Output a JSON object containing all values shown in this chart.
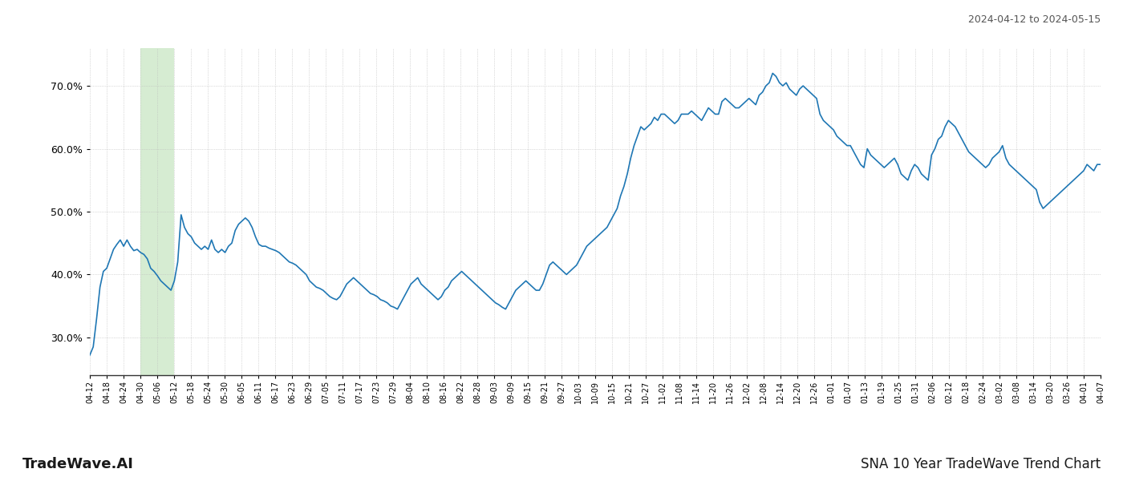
{
  "title_top_right": "2024-04-12 to 2024-05-15",
  "title_bottom_right": "SNA 10 Year TradeWave Trend Chart",
  "title_bottom_left": "TradeWave.AI",
  "line_color": "#1f77b4",
  "line_width": 1.2,
  "background_color": "#ffffff",
  "grid_color": "#bbbbbb",
  "highlight_color": "#d6ecd2",
  "ylim": [
    24.0,
    76.0
  ],
  "yticks": [
    30.0,
    40.0,
    50.0,
    60.0,
    70.0
  ],
  "highlight_start_label": "04-30",
  "highlight_end_label": "05-12",
  "x_tick_labels": [
    "04-12",
    "04-18",
    "04-24",
    "04-30",
    "05-06",
    "05-12",
    "05-18",
    "05-24",
    "05-30",
    "06-05",
    "06-11",
    "06-17",
    "06-23",
    "06-29",
    "07-05",
    "07-11",
    "07-17",
    "07-23",
    "07-29",
    "08-04",
    "08-10",
    "08-16",
    "08-22",
    "08-28",
    "09-03",
    "09-09",
    "09-15",
    "09-21",
    "09-27",
    "10-03",
    "10-09",
    "10-15",
    "10-21",
    "10-27",
    "11-02",
    "11-08",
    "11-14",
    "11-20",
    "11-26",
    "12-02",
    "12-08",
    "12-14",
    "12-20",
    "12-26",
    "01-01",
    "01-07",
    "01-13",
    "01-19",
    "01-25",
    "01-31",
    "02-06",
    "02-12",
    "02-18",
    "02-24",
    "03-02",
    "03-08",
    "03-14",
    "03-20",
    "03-26",
    "04-01",
    "04-07"
  ],
  "y_values": [
    27.2,
    28.5,
    33.0,
    38.0,
    40.5,
    41.0,
    42.5,
    44.0,
    44.8,
    45.5,
    44.5,
    45.5,
    44.5,
    43.8,
    44.0,
    43.5,
    43.2,
    42.5,
    41.0,
    40.5,
    39.8,
    39.0,
    38.5,
    38.0,
    37.5,
    39.0,
    42.0,
    49.5,
    47.5,
    46.5,
    46.0,
    45.0,
    44.5,
    44.0,
    44.5,
    44.0,
    45.5,
    44.0,
    43.5,
    44.0,
    43.5,
    44.5,
    45.0,
    47.0,
    48.0,
    48.5,
    49.0,
    48.5,
    47.5,
    46.0,
    44.8,
    44.5,
    44.5,
    44.2,
    44.0,
    43.8,
    43.5,
    43.0,
    42.5,
    42.0,
    41.8,
    41.5,
    41.0,
    40.5,
    40.0,
    39.0,
    38.5,
    38.0,
    37.8,
    37.5,
    37.0,
    36.5,
    36.2,
    36.0,
    36.5,
    37.5,
    38.5,
    39.0,
    39.5,
    39.0,
    38.5,
    38.0,
    37.5,
    37.0,
    36.8,
    36.5,
    36.0,
    35.8,
    35.5,
    35.0,
    34.8,
    34.5,
    35.5,
    36.5,
    37.5,
    38.5,
    39.0,
    39.5,
    38.5,
    38.0,
    37.5,
    37.0,
    36.5,
    36.0,
    36.5,
    37.5,
    38.0,
    39.0,
    39.5,
    40.0,
    40.5,
    40.0,
    39.5,
    39.0,
    38.5,
    38.0,
    37.5,
    37.0,
    36.5,
    36.0,
    35.5,
    35.2,
    34.8,
    34.5,
    35.5,
    36.5,
    37.5,
    38.0,
    38.5,
    39.0,
    38.5,
    38.0,
    37.5,
    37.5,
    38.5,
    40.0,
    41.5,
    42.0,
    41.5,
    41.0,
    40.5,
    40.0,
    40.5,
    41.0,
    41.5,
    42.5,
    43.5,
    44.5,
    45.0,
    45.5,
    46.0,
    46.5,
    47.0,
    47.5,
    48.5,
    49.5,
    50.5,
    52.5,
    54.0,
    56.0,
    58.5,
    60.5,
    62.0,
    63.5,
    63.0,
    63.5,
    64.0,
    65.0,
    64.5,
    65.5,
    65.5,
    65.0,
    64.5,
    64.0,
    64.5,
    65.5,
    65.5,
    65.5,
    66.0,
    65.5,
    65.0,
    64.5,
    65.5,
    66.5,
    66.0,
    65.5,
    65.5,
    67.5,
    68.0,
    67.5,
    67.0,
    66.5,
    66.5,
    67.0,
    67.5,
    68.0,
    67.5,
    67.0,
    68.5,
    69.0,
    70.0,
    70.5,
    72.0,
    71.5,
    70.5,
    70.0,
    70.5,
    69.5,
    69.0,
    68.5,
    69.5,
    70.0,
    69.5,
    69.0,
    68.5,
    68.0,
    65.5,
    64.5,
    64.0,
    63.5,
    63.0,
    62.0,
    61.5,
    61.0,
    60.5,
    60.5,
    59.5,
    58.5,
    57.5,
    57.0,
    60.0,
    59.0,
    58.5,
    58.0,
    57.5,
    57.0,
    57.5,
    58.0,
    58.5,
    57.5,
    56.0,
    55.5,
    55.0,
    56.5,
    57.5,
    57.0,
    56.0,
    55.5,
    55.0,
    59.0,
    60.0,
    61.5,
    62.0,
    63.5,
    64.5,
    64.0,
    63.5,
    62.5,
    61.5,
    60.5,
    59.5,
    59.0,
    58.5,
    58.0,
    57.5,
    57.0,
    57.5,
    58.5,
    59.0,
    59.5,
    60.5,
    58.5,
    57.5,
    57.0,
    56.5,
    56.0,
    55.5,
    55.0,
    54.5,
    54.0,
    53.5,
    51.5,
    50.5,
    51.0,
    51.5,
    52.0,
    52.5,
    53.0,
    53.5,
    54.0,
    54.5,
    55.0,
    55.5,
    56.0,
    56.5,
    57.5,
    57.0,
    56.5,
    57.5,
    57.5
  ]
}
